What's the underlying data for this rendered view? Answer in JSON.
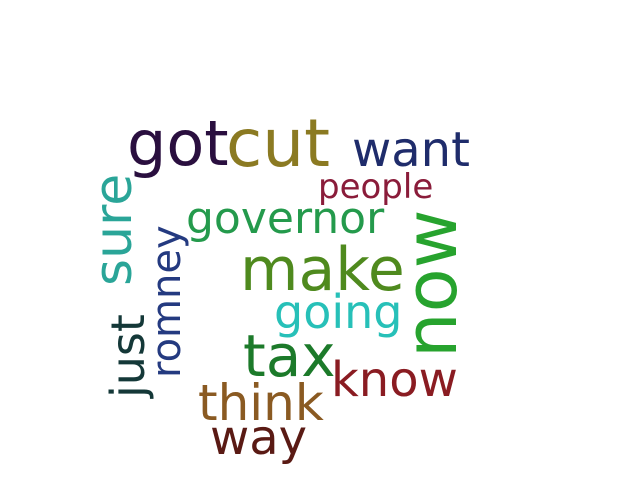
{
  "words": [
    {
      "text": "got",
      "color": "#2a0f3f"
    },
    {
      "text": "cut",
      "color": "#8b7a22"
    },
    {
      "text": "want",
      "color": "#1f2c6b"
    },
    {
      "text": "people",
      "color": "#8a1c3a"
    },
    {
      "text": "sure",
      "color": "#2aa598"
    },
    {
      "text": "romney",
      "color": "#243a80"
    },
    {
      "text": "governor",
      "color": "#249a4c"
    },
    {
      "text": "now",
      "color": "#27a32e"
    },
    {
      "text": "make",
      "color": "#4f8a1e"
    },
    {
      "text": "going",
      "color": "#27c0b8"
    },
    {
      "text": "just",
      "color": "#143838"
    },
    {
      "text": "tax",
      "color": "#1c7a2a"
    },
    {
      "text": "know",
      "color": "#8a1c22"
    },
    {
      "text": "think",
      "color": "#8a5a22"
    },
    {
      "text": "way",
      "color": "#5a1a14"
    }
  ]
}
